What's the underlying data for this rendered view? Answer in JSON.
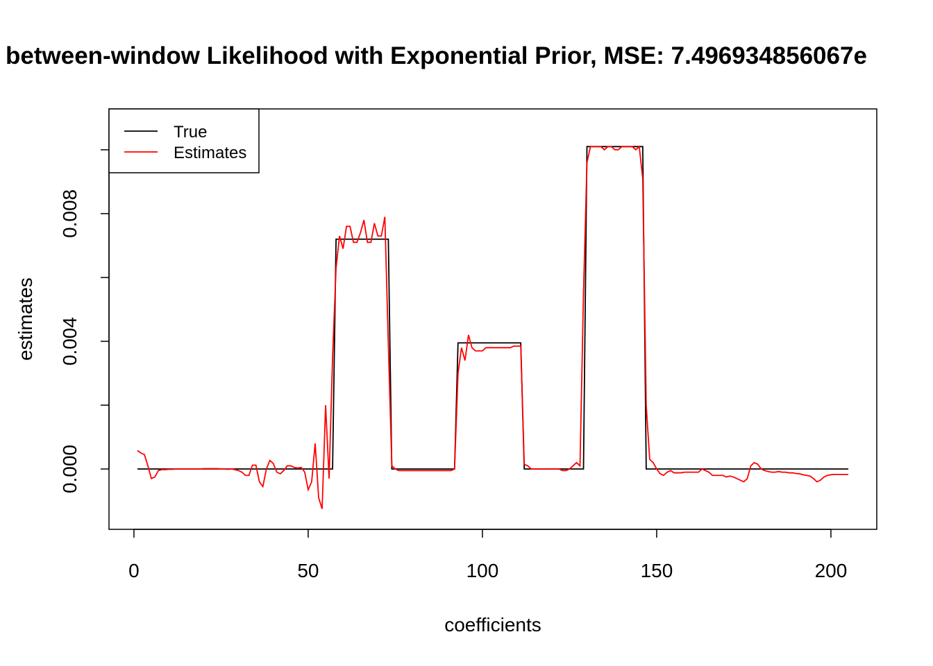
{
  "chart_data": {
    "type": "line",
    "title": "between-window Likelihood with Exponential Prior, MSE: 7.496934856067e",
    "xlabel": "coefficients",
    "ylabel": "estimates",
    "x": [
      1,
      2,
      3,
      4,
      5,
      6,
      7,
      8,
      9,
      10,
      11,
      12,
      13,
      14,
      15,
      16,
      17,
      18,
      19,
      20,
      21,
      22,
      23,
      24,
      25,
      26,
      27,
      28,
      29,
      30,
      31,
      32,
      33,
      34,
      35,
      36,
      37,
      38,
      39,
      40,
      41,
      42,
      43,
      44,
      45,
      46,
      47,
      48,
      49,
      50,
      51,
      52,
      53,
      54,
      55,
      56,
      57,
      58,
      59,
      60,
      61,
      62,
      63,
      64,
      65,
      66,
      67,
      68,
      69,
      70,
      71,
      72,
      73,
      74,
      75,
      76,
      77,
      78,
      79,
      80,
      81,
      82,
      83,
      84,
      85,
      86,
      87,
      88,
      89,
      90,
      91,
      92,
      93,
      94,
      95,
      96,
      97,
      98,
      99,
      100,
      101,
      102,
      103,
      104,
      105,
      106,
      107,
      108,
      109,
      110,
      111,
      112,
      113,
      114,
      115,
      116,
      117,
      118,
      119,
      120,
      121,
      122,
      123,
      124,
      125,
      126,
      127,
      128,
      129,
      130,
      131,
      132,
      133,
      134,
      135,
      136,
      137,
      138,
      139,
      140,
      141,
      142,
      143,
      144,
      145,
      146,
      147,
      148,
      149,
      150,
      151,
      152,
      153,
      154,
      155,
      156,
      157,
      158,
      159,
      160,
      161,
      162,
      163,
      164,
      165,
      166,
      167,
      168,
      169,
      170,
      171,
      172,
      173,
      174,
      175,
      176,
      177,
      178,
      179,
      180,
      181,
      182,
      183,
      184,
      185,
      186,
      187,
      188,
      189,
      190,
      191,
      192,
      193,
      194,
      195,
      196,
      197,
      198,
      199,
      200,
      201,
      202,
      203,
      204,
      205
    ],
    "series": [
      {
        "name": "True",
        "color": "#000000",
        "values": [
          0,
          0,
          0,
          0,
          0,
          0,
          0,
          0,
          0,
          0,
          0,
          0,
          0,
          0,
          0,
          0,
          0,
          0,
          0,
          0,
          0,
          0,
          0,
          0,
          0,
          0,
          0,
          0,
          0,
          0,
          0,
          0,
          0,
          0,
          0,
          0,
          0,
          0,
          0,
          0,
          0,
          0,
          0,
          0,
          0,
          0,
          0,
          0,
          0,
          0,
          0,
          0,
          0,
          0,
          0,
          0,
          0,
          0.0072,
          0.0072,
          0.0072,
          0.0072,
          0.0072,
          0.0072,
          0.0072,
          0.0072,
          0.0072,
          0.0072,
          0.0072,
          0.0072,
          0.0072,
          0.0072,
          0.0072,
          0.0072,
          0,
          0,
          0,
          0,
          0,
          0,
          0,
          0,
          0,
          0,
          0,
          0,
          0,
          0,
          0,
          0,
          0,
          0,
          0,
          0.00395,
          0.00395,
          0.00395,
          0.00395,
          0.00395,
          0.00395,
          0.00395,
          0.00395,
          0.00395,
          0.00395,
          0.00395,
          0.00395,
          0.00395,
          0.00395,
          0.00395,
          0.00395,
          0.00395,
          0.00395,
          0.00395,
          0,
          0,
          0,
          0,
          0,
          0,
          0,
          0,
          0,
          0,
          0,
          0,
          0,
          0,
          0,
          0,
          0,
          0,
          0.0101,
          0.0101,
          0.0101,
          0.0101,
          0.0101,
          0.0101,
          0.0101,
          0.0101,
          0.0101,
          0.0101,
          0.0101,
          0.0101,
          0.0101,
          0.0101,
          0.0101,
          0.0101,
          0.0101,
          0,
          0,
          0,
          0,
          0,
          0,
          0,
          0,
          0,
          0,
          0,
          0,
          0,
          0,
          0,
          0,
          0,
          0,
          0,
          0,
          0,
          0,
          0,
          0,
          0,
          0,
          0,
          0,
          0,
          0,
          0,
          0,
          0,
          0,
          0,
          0,
          0,
          0,
          0,
          0,
          0,
          0,
          0,
          0,
          0,
          0,
          0,
          0,
          0,
          0,
          0,
          0,
          0,
          0,
          0,
          0,
          0,
          0,
          0
        ]
      },
      {
        "name": "Estimates",
        "color": "#ff0000",
        "values": [
          0.00058,
          0.0005,
          0.00045,
          0.0001,
          -0.0003,
          -0.00025,
          -5e-05,
          -2e-05,
          -2e-05,
          -1e-05,
          -1e-05,
          0,
          0,
          0,
          0,
          0,
          0,
          0,
          0,
          1e-05,
          1e-05,
          1e-05,
          1e-05,
          1e-05,
          0,
          0,
          -1e-05,
          0,
          -2e-05,
          -5e-05,
          -0.0001,
          -0.0002,
          -0.0002,
          0.00012,
          0.00012,
          -0.0004,
          -0.00055,
          0,
          0.00027,
          0.00017,
          -0.0001,
          -0.00015,
          -5e-05,
          0.0001,
          0.0001,
          5e-05,
          3e-05,
          5e-05,
          -0.0001,
          -0.00065,
          -0.0004,
          0.0008,
          -0.0009,
          -0.00125,
          0.002,
          -0.0003,
          0.0035,
          0.0063,
          0.0073,
          0.0069,
          0.0076,
          0.0076,
          0.0071,
          0.0071,
          0.0074,
          0.0078,
          0.0071,
          0.0071,
          0.0077,
          0.0073,
          0.0073,
          0.0079,
          0.0039,
          0.0001,
          0,
          -5e-05,
          -5e-05,
          -5e-05,
          -5e-05,
          -5e-05,
          -5e-05,
          -5e-05,
          -5e-05,
          -5e-05,
          -5e-05,
          -5e-05,
          -5e-05,
          -5e-05,
          -5e-05,
          -5e-05,
          -5e-05,
          0,
          0.003,
          0.0038,
          0.0034,
          0.0042,
          0.0038,
          0.0037,
          0.0037,
          0.0037,
          0.0038,
          0.0038,
          0.0038,
          0.0038,
          0.0038,
          0.0038,
          0.0038,
          0.0038,
          0.00385,
          0.00385,
          0.00385,
          0.00015,
          0.0001,
          0,
          0,
          0,
          0,
          0,
          0,
          0,
          0,
          0,
          -5e-05,
          -5e-05,
          0,
          0.0001,
          0.0002,
          0.0001,
          0.0055,
          0.0096,
          0.0101,
          0.0101,
          0.0101,
          0.0101,
          0.01,
          0.0101,
          0.0101,
          0.01,
          0.01,
          0.0101,
          0.0101,
          0.0101,
          0.0101,
          0.01,
          0.0101,
          0.0091,
          0.002,
          0.0003,
          0.0002,
          0,
          -0.00015,
          -0.0002,
          -0.0001,
          -5e-05,
          -0.00012,
          -0.00012,
          -0.00012,
          -0.0001,
          -0.0001,
          -0.0001,
          -0.0001,
          -0.0001,
          0,
          -5e-05,
          -0.0001,
          -0.0002,
          -0.0002,
          -0.0002,
          -0.0002,
          -0.00025,
          -0.00022,
          -0.00025,
          -0.0003,
          -0.00035,
          -0.0004,
          -0.0003,
          0.0001,
          0.0002,
          0.00015,
          0,
          -5e-05,
          -8e-05,
          -0.0001,
          -0.0001,
          -8e-05,
          -0.0001,
          -0.0001,
          -0.00012,
          -0.00012,
          -0.00014,
          -0.00015,
          -0.00018,
          -0.0002,
          -0.00022,
          -0.0003,
          -0.0004,
          -0.00035,
          -0.00025,
          -0.0002,
          -0.00018,
          -0.00017,
          -0.00017,
          -0.00017,
          -0.00017,
          -0.00017
        ]
      }
    ],
    "xlim": [
      -7.16,
      213.16
    ],
    "xticks": [
      0,
      50,
      100,
      150,
      200
    ],
    "ylim": [
      -0.00189,
      0.01128
    ],
    "yticks": [
      {
        "value": 0,
        "label": "0.000"
      },
      {
        "value": 0.002,
        "label": null
      },
      {
        "value": 0.004,
        "label": "0.004"
      },
      {
        "value": 0.006,
        "label": null
      },
      {
        "value": 0.008,
        "label": "0.008"
      },
      {
        "value": 0.01,
        "label": null
      }
    ],
    "legend": "top-left"
  }
}
